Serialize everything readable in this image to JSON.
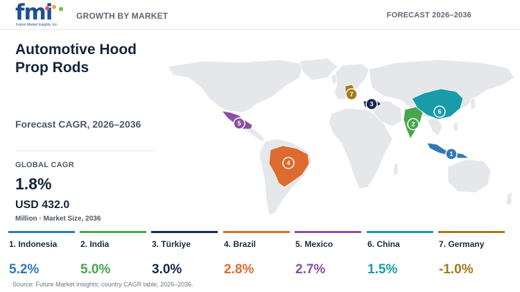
{
  "header": {
    "logo_text": "fmi",
    "logo_sub": "Future Market Insights, Inc.",
    "section_label": "GROWTH BY MARKET",
    "forecast_label": "FORECAST 2026–2036"
  },
  "summary": {
    "title": "Automotive Hood Prop Rods",
    "cagr_label": "Forecast CAGR, 2026–2036",
    "global_label": "GLOBAL CAGR",
    "global_value": "1.8%",
    "market_value": "USD 432.0",
    "market_sub": "Million · Market Size, 2036"
  },
  "colors": {
    "indonesia": "#2f79b9",
    "india": "#45a74a",
    "turkiye": "#15284b",
    "brazil": "#dd6a2e",
    "mexico": "#8a4fa0",
    "china": "#1a9ba8",
    "germany": "#a17a1a",
    "land": "#e5e7ea"
  },
  "countries": [
    {
      "rank": "1",
      "name": "1. Indonesia",
      "value": "5.2%",
      "color": "#2f79b9"
    },
    {
      "rank": "2",
      "name": "2. India",
      "value": "5.0%",
      "color": "#45a74a"
    },
    {
      "rank": "3",
      "name": "3. Türkiye",
      "value": "3.0%",
      "color": "#15284b"
    },
    {
      "rank": "4",
      "name": "4. Brazil",
      "value": "2.8%",
      "color": "#dd6a2e"
    },
    {
      "rank": "5",
      "name": "5. Mexico",
      "value": "2.7%",
      "color": "#8a4fa0"
    },
    {
      "rank": "6",
      "name": "6. China",
      "value": "1.5%",
      "color": "#1a9ba8"
    },
    {
      "rank": "7",
      "name": "7. Germany",
      "value": "-1.0%",
      "color": "#a17a1a"
    }
  ],
  "map_markers": [
    "1",
    "2",
    "3",
    "4",
    "5",
    "6",
    "7"
  ],
  "source": "Source: Future Market Insights; country CAGR table, 2026–2036."
}
